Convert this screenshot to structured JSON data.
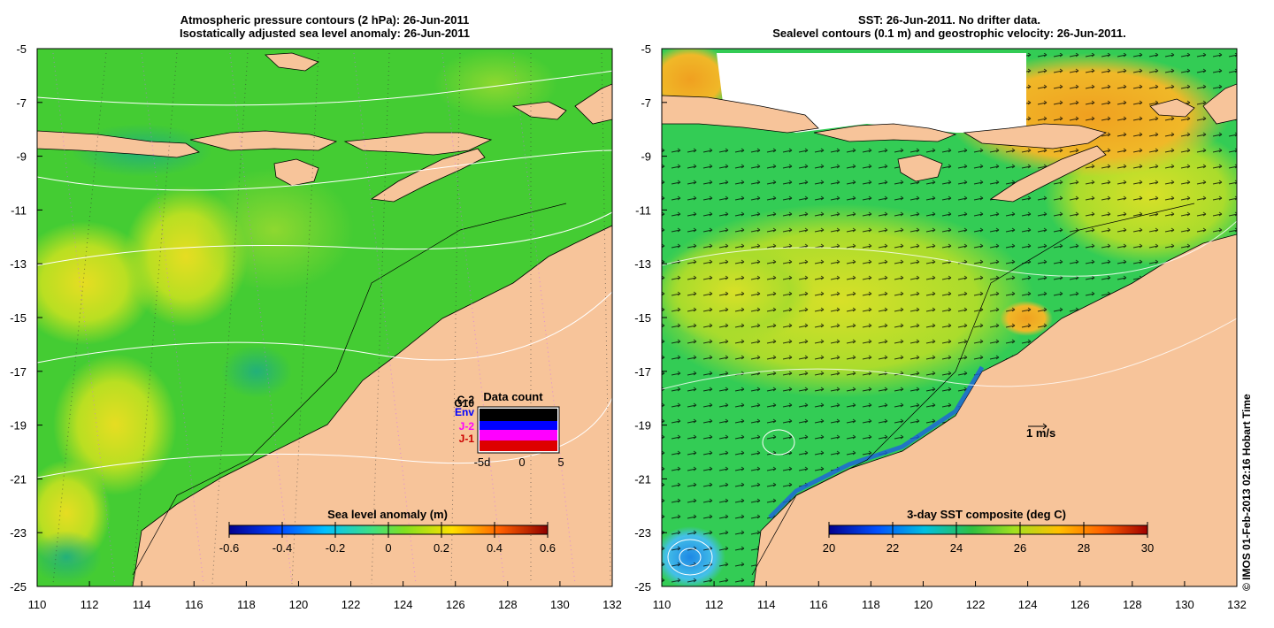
{
  "left_panel": {
    "title_line1": "Atmospheric pressure contours (2 hPa): 26-Jun-2011",
    "title_line2": "Isostatically adjusted sea level anomaly: 26-Jun-2011",
    "colorbar_title": "Sea level anomaly (m)",
    "colorbar_ticks": [
      "-0.6",
      "-0.4",
      "-0.2",
      "0",
      "0.2",
      "0.4",
      "0.6"
    ],
    "data_count": {
      "title": "Data count",
      "satellites": [
        "C-2",
        "G10",
        "Env",
        "J-2",
        "J-1"
      ],
      "satellite_colors": [
        "#000000",
        "#000000",
        "#0000ff",
        "#ff00ff",
        "#cc0000"
      ],
      "xticks": [
        "-5d",
        "0",
        "5"
      ]
    }
  },
  "right_panel": {
    "title_line1": "SST: 26-Jun-2011. No drifter data.",
    "title_line2": "Sealevel contours (0.1 m) and geostrophic velocity: 26-Jun-2011.",
    "colorbar_title": "3-day SST composite (deg C)",
    "colorbar_ticks": [
      "20",
      "22",
      "24",
      "26",
      "28",
      "30"
    ],
    "velocity_scale_label": "1 m/s"
  },
  "axes": {
    "x_ticks": [
      "110",
      "112",
      "114",
      "116",
      "118",
      "120",
      "122",
      "124",
      "126",
      "128",
      "130",
      "132"
    ],
    "y_ticks": [
      "-5",
      "-7",
      "-9",
      "-11",
      "-13",
      "-15",
      "-17",
      "-19",
      "-21",
      "-23",
      "-25"
    ],
    "lon_range": [
      110,
      132
    ],
    "lat_range": [
      -25,
      -5
    ]
  },
  "credit": "© IMOS 01-Feb-2013 02:16 Hobart Time",
  "colors": {
    "land": "#f7c49a",
    "ocean_green": "#44cc33",
    "sst_green": "#33cc55"
  }
}
